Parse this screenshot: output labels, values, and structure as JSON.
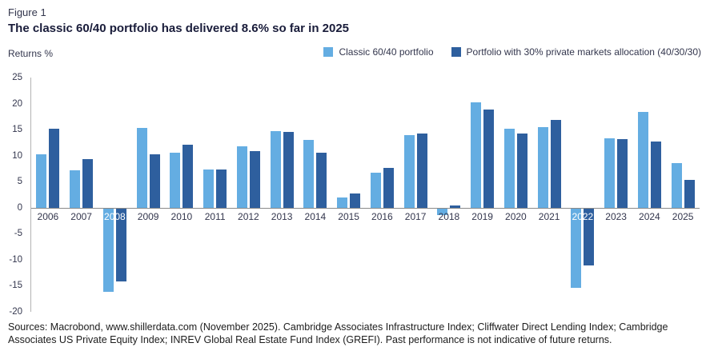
{
  "figure_label": "Figure 1",
  "title": "The classic 60/40 portfolio has delivered 8.6% so far in 2025",
  "axis_unit": "Returns %",
  "chart_data": {
    "type": "bar",
    "categories": [
      "2006",
      "2007",
      "2008",
      "2009",
      "2010",
      "2011",
      "2012",
      "2013",
      "2014",
      "2015",
      "2016",
      "2017",
      "2018",
      "2019",
      "2020",
      "2021",
      "2022",
      "2023",
      "2024",
      "2025"
    ],
    "series": [
      {
        "name": "Classic 60/40 portfolio",
        "color": "#64ADE2",
        "values": [
          10.2,
          7.2,
          -16.0,
          15.3,
          10.6,
          7.3,
          11.8,
          14.7,
          13.0,
          1.9,
          6.8,
          13.9,
          -1.3,
          20.2,
          15.1,
          15.5,
          -15.2,
          13.3,
          18.4,
          8.6
        ]
      },
      {
        "name": "Portfolio with 30% private markets allocation (40/30/30)",
        "color": "#2E5F9E",
        "values": [
          15.2,
          9.3,
          -14.0,
          10.3,
          12.1,
          7.4,
          10.9,
          14.6,
          10.5,
          2.7,
          7.6,
          14.3,
          0.5,
          18.9,
          14.2,
          16.9,
          -10.9,
          13.1,
          12.7,
          5.3
        ]
      }
    ],
    "title": "The classic 60/40 portfolio has delivered 8.6% so far in 2025",
    "xlabel": "",
    "ylabel": "Returns %",
    "ylim": [
      -20,
      25
    ],
    "yticks": [
      25,
      20,
      15,
      10,
      5,
      0,
      -5,
      -10,
      -15,
      -20
    ],
    "grid": false,
    "legend_position": "top-right"
  },
  "footer": {
    "sources": "Sources: Macrobond, www.shillerdata.com (November 2025). Cambridge Associates Infrastructure Index; Cliffwater Direct Lending Index; Cambridge Associates US Private Equity Index; INREV Global Real Estate Fund Index (GREFI). Past performance is not indicative of future returns."
  }
}
